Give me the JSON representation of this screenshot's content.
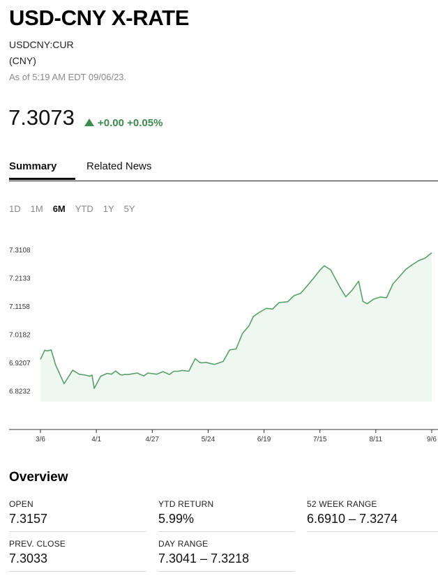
{
  "header": {
    "title": "USD-CNY X-RATE",
    "ticker": "USDCNY:CUR",
    "currency": "(CNY)",
    "as_of": "As of 5:19 AM EDT 09/06/23."
  },
  "quote": {
    "price": "7.3073",
    "change": "+0.00 +0.05%",
    "change_color": "#3c8a4e"
  },
  "tabs": [
    {
      "label": "Summary",
      "active": true
    },
    {
      "label": "Related News",
      "active": false
    }
  ],
  "ranges": [
    {
      "label": "1D",
      "active": false
    },
    {
      "label": "1M",
      "active": false
    },
    {
      "label": "6M",
      "active": true
    },
    {
      "label": "YTD",
      "active": false
    },
    {
      "label": "1Y",
      "active": false
    },
    {
      "label": "5Y",
      "active": false
    }
  ],
  "chart_data": {
    "type": "area",
    "ylim": [
      6.7865,
      7.3108
    ],
    "yticks": [
      "7.3108",
      "7.2133",
      "7.1158",
      "7.0182",
      "6.9207",
      "6.8232"
    ],
    "ytick_values": [
      7.3108,
      7.2133,
      7.1158,
      7.0182,
      6.9207,
      6.8232
    ],
    "xticks": [
      "3/6",
      "4/1",
      "4/27",
      "5/24",
      "6/19",
      "7/15",
      "8/11",
      "9/6"
    ],
    "x": [
      0,
      2,
      3,
      5,
      7,
      11,
      15,
      18,
      21,
      23,
      24,
      25,
      28,
      31,
      33,
      35,
      37,
      38,
      39,
      41,
      45,
      48,
      50,
      54,
      57,
      60,
      62,
      64,
      66,
      69,
      72,
      74,
      75,
      77,
      79,
      81,
      85,
      88,
      91,
      94,
      97,
      99,
      102,
      105,
      108,
      111,
      115,
      118,
      121,
      124,
      127,
      130,
      132,
      135,
      139,
      142,
      145,
      148,
      150,
      152,
      155,
      158,
      161,
      164,
      167,
      170,
      173,
      176,
      179,
      182
    ],
    "values": [
      6.932,
      6.964,
      6.961,
      6.965,
      6.914,
      6.848,
      6.895,
      6.881,
      6.878,
      6.874,
      6.878,
      6.832,
      6.874,
      6.884,
      6.881,
      6.892,
      6.88,
      6.878,
      6.88,
      6.88,
      6.885,
      6.875,
      6.885,
      6.881,
      6.89,
      6.88,
      6.891,
      6.891,
      6.894,
      6.891,
      6.935,
      6.922,
      6.92,
      6.922,
      6.918,
      6.915,
      6.925,
      6.965,
      6.968,
      7.022,
      7.048,
      7.08,
      7.095,
      7.108,
      7.106,
      7.128,
      7.131,
      7.152,
      7.16,
      7.185,
      7.212,
      7.24,
      7.255,
      7.241,
      7.185,
      7.148,
      7.171,
      7.202,
      7.132,
      7.124,
      7.14,
      7.147,
      7.145,
      7.193,
      7.218,
      7.243,
      7.259,
      7.273,
      7.282,
      7.3
    ],
    "line_color": "#5a9e6b",
    "fill_color": "#eef8f1"
  },
  "overview": {
    "title": "Overview",
    "stats": [
      {
        "label": "OPEN",
        "value": "7.3157"
      },
      {
        "label": "YTD RETURN",
        "value": "5.99%"
      },
      {
        "label": "52 WEEK RANGE",
        "value": "6.6910 – 7.3274"
      },
      {
        "label": "PREV. CLOSE",
        "value": "7.3033"
      },
      {
        "label": "DAY RANGE",
        "value": "7.3041 – 7.3218"
      }
    ]
  }
}
